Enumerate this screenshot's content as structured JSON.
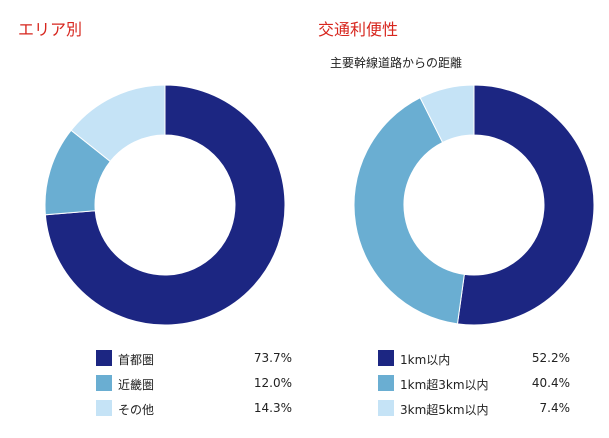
{
  "colors": {
    "title": "#d7261e"
  },
  "charts": [
    {
      "title": "エリア別",
      "subtitle": "",
      "chart_data": {
        "type": "pie",
        "donut": true,
        "categories": [
          "首都圏",
          "近畿圏",
          "その他"
        ],
        "values": [
          73.7,
          12.0,
          14.3
        ],
        "value_labels": [
          "73.7%",
          "12.0%",
          "14.3%"
        ],
        "colors": [
          "#1c2682",
          "#6aaed2",
          "#c5e3f6"
        ]
      }
    },
    {
      "title": "交通利便性",
      "subtitle": "主要幹線道路からの距離",
      "chart_data": {
        "type": "pie",
        "donut": true,
        "categories": [
          "1km以内",
          "1km超3km以内",
          "3km超5km以内"
        ],
        "values": [
          52.2,
          40.4,
          7.4
        ],
        "value_labels": [
          "52.2%",
          "40.4%",
          "7.4%"
        ],
        "colors": [
          "#1c2682",
          "#6aaed2",
          "#c5e3f6"
        ]
      }
    }
  ]
}
